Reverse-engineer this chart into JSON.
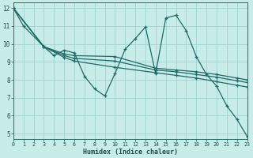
{
  "xlabel": "Humidex (Indice chaleur)",
  "background_color": "#c8ecea",
  "grid_color": "#a0d4d0",
  "line_color": "#1e6b65",
  "xlim": [
    0,
    23
  ],
  "ylim": [
    4.7,
    12.3
  ],
  "xtick_labels": [
    "0",
    "1",
    "2",
    "3",
    "4",
    "5",
    "6",
    "7",
    "8",
    "9",
    "10",
    "11",
    "12",
    "13",
    "14",
    "15",
    "16",
    "17",
    "18",
    "19",
    "20",
    "21",
    "22",
    "23"
  ],
  "ytick_vals": [
    5,
    6,
    7,
    8,
    9,
    10,
    11,
    12
  ],
  "series": [
    {
      "x": [
        0,
        1,
        3,
        4,
        5,
        6,
        7,
        8,
        9,
        10,
        11,
        12,
        13,
        14,
        15,
        16,
        17,
        18,
        19,
        20,
        21,
        22,
        23
      ],
      "y": [
        12,
        11,
        9.85,
        9.35,
        9.65,
        9.5,
        8.2,
        7.5,
        7.1,
        8.35,
        9.7,
        10.3,
        10.95,
        8.35,
        11.45,
        11.6,
        10.75,
        9.3,
        8.3,
        7.65,
        6.55,
        5.8,
        4.85
      ]
    },
    {
      "x": [
        0,
        3,
        5,
        6,
        10,
        14,
        16,
        18,
        20,
        22,
        23
      ],
      "y": [
        12,
        9.85,
        9.45,
        9.35,
        9.3,
        8.65,
        8.55,
        8.45,
        8.3,
        8.1,
        8.0
      ]
    },
    {
      "x": [
        0,
        3,
        5,
        6,
        10,
        14,
        16,
        18,
        20,
        22,
        23
      ],
      "y": [
        12,
        9.85,
        9.35,
        9.2,
        9.05,
        8.55,
        8.45,
        8.3,
        8.15,
        7.95,
        7.85
      ]
    },
    {
      "x": [
        0,
        3,
        5,
        6,
        10,
        14,
        16,
        18,
        20,
        22,
        23
      ],
      "y": [
        12,
        9.85,
        9.25,
        9.05,
        8.7,
        8.4,
        8.25,
        8.1,
        7.9,
        7.7,
        7.6
      ]
    }
  ]
}
